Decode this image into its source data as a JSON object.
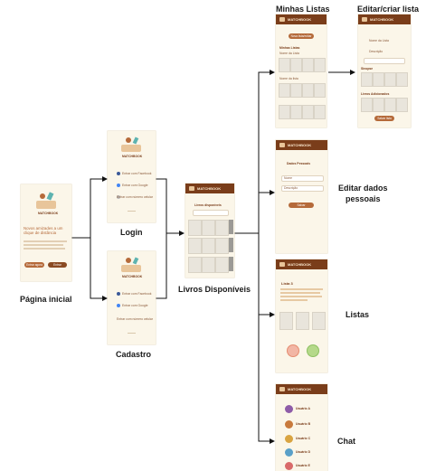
{
  "nodes": {
    "pagina_inicial": "Página inicial",
    "login": "Login",
    "cadastro": "Cadastro",
    "livros_disponiveis": "Livros Disponíveis",
    "minhas_listas": "Minhas Listas",
    "editar_criar_lista": "Editar/criar lista",
    "editar_dados": "Editar dados\npessoais",
    "listas": "Listas",
    "chat": "Chat"
  },
  "screens": {
    "brand": "MATCHBOOK",
    "home_title": "Novos amizades a um clique de distância",
    "home_btn_1": "Entrar agora",
    "home_btn_2": "Entrar",
    "login_opt_1": "Entrar com Facebook",
    "login_opt_2": "Entrar com Google",
    "login_opt_3": "Entrar com número celular",
    "livros_title": "Livros disponíveis",
    "minhas_btn": "Nova lista/editar",
    "minhas_title": "Minhas Listas",
    "minhas_sub_1": "Nome da Lista",
    "minhas_sub_2": "Nome da lista",
    "editar_lista_field_1": "Nome da Lista",
    "editar_lista_field_2": "Descrição",
    "editar_lista_sec_1": "Sinopse",
    "editar_lista_sec_2": "Livros Adicionados",
    "editar_lista_btn": "Salvar lista",
    "dados_title": "Dados Pessoais",
    "dados_field_1": "Nome",
    "dados_field_2": "Descrição",
    "dados_btn": "Salvar",
    "listas_title": "Lista 3",
    "chat_names": [
      "Usuário A",
      "Usuário B",
      "Usuário C",
      "Usuário D",
      "Usuário E"
    ]
  },
  "colors": {
    "screen_bg": "#fbf6e9",
    "topbar": "#7a3d1a",
    "accent": "#b56a3a",
    "placeholder": "#e9e5dc"
  }
}
